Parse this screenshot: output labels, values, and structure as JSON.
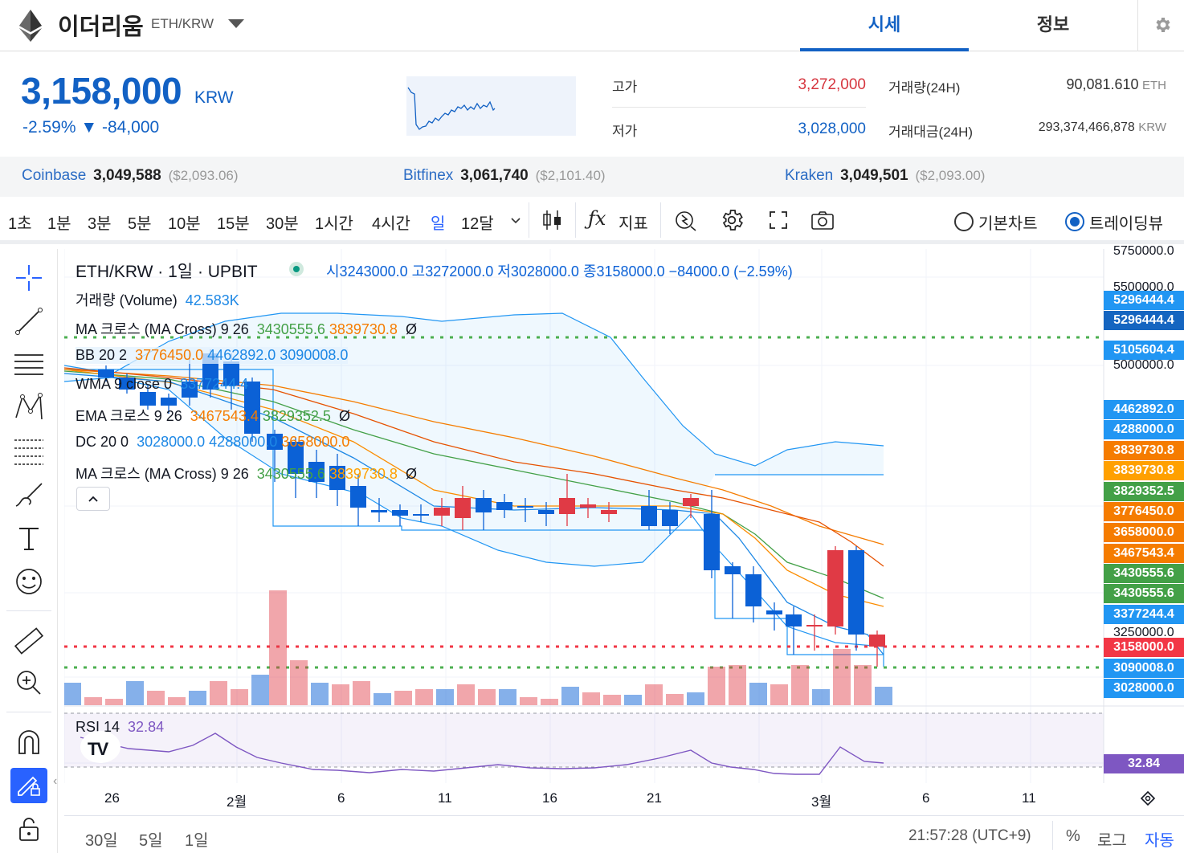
{
  "header": {
    "coin_name": "이더리움",
    "pair": "ETH/KRW",
    "tabs": [
      "시세",
      "정보"
    ]
  },
  "quote": {
    "price": "3,158,000",
    "unit": "KRW",
    "change": "-2.59% ▼ -84,000",
    "high_label": "고가",
    "high": "3,272,000",
    "low_label": "저가",
    "low": "3,028,000",
    "volume_label": "거래량(24H)",
    "volume": "90,081.610",
    "volume_unit": "ETH",
    "amount_label": "거래대금(24H)",
    "amount": "293,374,466,878",
    "amount_unit": "KRW"
  },
  "exchanges": [
    {
      "name": "Coinbase",
      "price": "3,049,588",
      "usd": "($2,093.06)"
    },
    {
      "name": "Bitfinex",
      "price": "3,061,740",
      "usd": "($2,101.40)"
    },
    {
      "name": "Kraken",
      "price": "3,049,501",
      "usd": "($2,093.00)"
    }
  ],
  "toolbar": {
    "intervals": [
      "1초",
      "1분",
      "3분",
      "5분",
      "10분",
      "15분",
      "30분",
      "1시간",
      "4시간",
      "일",
      "12달"
    ],
    "active_interval": "일",
    "indicator_label": "지표",
    "chart_modes": [
      "기본차트",
      "트레이딩뷰"
    ],
    "active_mode": "트레이딩뷰"
  },
  "legend": {
    "title": "ETH/KRW · 1일 · UPBIT",
    "ohlc": "시3243000.0  고3272000.0  저3028000.0  종3158000.0  −84000.0 (−2.59%)",
    "volume": {
      "name": "거래량 (Volume)",
      "value": "42.583K"
    },
    "ma_cross": {
      "name": "MA 크로스 (MA Cross) 9 26",
      "v1": "3430555.6",
      "v2": "3839730.8",
      "sym": "Ø"
    },
    "bb": {
      "name": "BB 20 2",
      "v1": "3776450.0",
      "v2": "4462892.0",
      "v3": "3090008.0"
    },
    "wma": {
      "name": "WMA 9 close 0",
      "v1": "3377244.4"
    },
    "ema_cross": {
      "name": "EMA 크로스 9 26",
      "v1": "3467543.4",
      "v2": "3829352.5",
      "sym": "Ø"
    },
    "dc": {
      "name": "DC 20 0",
      "v1": "3028000.0",
      "v2": "4288000.0",
      "v3": "3658000.0"
    },
    "ma_cross2": {
      "name": "MA 크로스 (MA Cross) 9 26",
      "v1": "3430555.6",
      "v2": "3839730.8",
      "sym": "Ø"
    },
    "rsi": {
      "name": "RSI 14",
      "value": "32.84"
    }
  },
  "price_axis": {
    "ticks": [
      "5750000.0",
      "5500000.0",
      "5000000.0",
      "3250000.0"
    ],
    "labels": [
      {
        "v": "5296444.4",
        "color": "#2196f3"
      },
      {
        "v": "5296444.4",
        "color": "#1565c0"
      },
      {
        "v": "5105604.4",
        "color": "#2196f3"
      },
      {
        "v": "4462892.0",
        "color": "#2196f3"
      },
      {
        "v": "4288000.0",
        "color": "#2196f3"
      },
      {
        "v": "3839730.8",
        "color": "#f57c00"
      },
      {
        "v": "3839730.8",
        "color": "#ffa000"
      },
      {
        "v": "3829352.5",
        "color": "#43a047"
      },
      {
        "v": "3776450.0",
        "color": "#f57c00"
      },
      {
        "v": "3658000.0",
        "color": "#f57c00"
      },
      {
        "v": "3467543.4",
        "color": "#f57c00"
      },
      {
        "v": "3430555.6",
        "color": "#43a047"
      },
      {
        "v": "3430555.6",
        "color": "#43a047"
      },
      {
        "v": "3377244.4",
        "color": "#2196f3"
      },
      {
        "v": "3158000.0",
        "color": "#f23645"
      },
      {
        "v": "3090008.0",
        "color": "#2196f3"
      },
      {
        "v": "3028000.0",
        "color": "#2196f3"
      }
    ],
    "rsi_label": "32.84"
  },
  "time_axis": [
    "26",
    "2월",
    "6",
    "11",
    "16",
    "21",
    "3월",
    "6",
    "11"
  ],
  "footer": {
    "ranges": [
      "30일",
      "5일",
      "1일"
    ],
    "clock": "21:57:28 (UTC+9)",
    "buttons": [
      "%",
      "로그",
      "자동"
    ]
  },
  "colors": {
    "accent": "#1261c4",
    "up": "#e03a45",
    "down": "#0b61d6",
    "high_text": "#d6363f"
  }
}
